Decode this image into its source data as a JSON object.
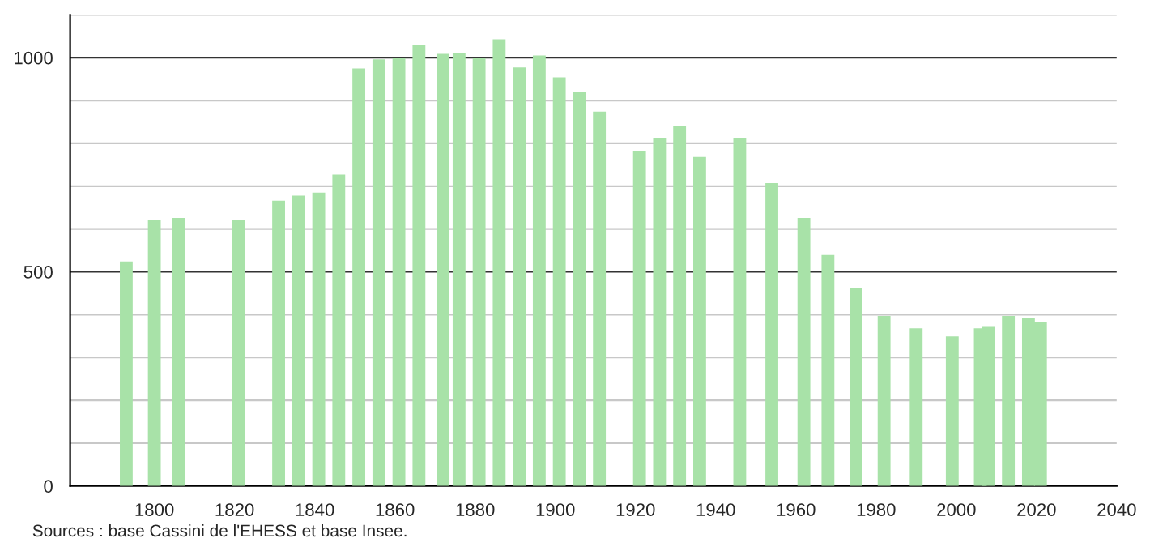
{
  "chart_data": {
    "type": "bar",
    "x": [
      1793,
      1800,
      1806,
      1821,
      1831,
      1836,
      1841,
      1846,
      1851,
      1856,
      1861,
      1866,
      1872,
      1876,
      1881,
      1886,
      1891,
      1896,
      1901,
      1906,
      1911,
      1921,
      1926,
      1931,
      1936,
      1946,
      1954,
      1962,
      1968,
      1975,
      1982,
      1990,
      1999,
      2006,
      2008,
      2013,
      2018,
      2021
    ],
    "values": [
      524,
      622,
      626,
      622,
      666,
      678,
      685,
      727,
      975,
      996,
      999,
      1030,
      1009,
      1010,
      999,
      1043,
      977,
      1005,
      954,
      920,
      874,
      783,
      813,
      840,
      768,
      813,
      707,
      626,
      539,
      463,
      397,
      368,
      349,
      368,
      373,
      397,
      392,
      383
    ],
    "color": "#a8e2a8",
    "xlim": [
      1779,
      2040
    ],
    "xticks": [
      1800,
      1820,
      1840,
      1860,
      1880,
      1900,
      1920,
      1940,
      1960,
      1980,
      2000,
      2020,
      2040
    ],
    "ylim": [
      0,
      1100
    ],
    "yticks": [
      0,
      {
        "value": 100,
        "label": null
      },
      {
        "value": 200,
        "label": null
      },
      {
        "value": 300,
        "label": null
      },
      {
        "value": 400,
        "label": null
      },
      500,
      {
        "value": 600,
        "label": null
      },
      {
        "value": 700,
        "label": null
      },
      {
        "value": 800,
        "label": null
      },
      {
        "value": 900,
        "label": null
      },
      1000,
      {
        "value": 1100,
        "label": null
      }
    ],
    "grid": "y",
    "annotations": [
      "Sources : base Cassini de l'EHESS et base Insee."
    ]
  }
}
